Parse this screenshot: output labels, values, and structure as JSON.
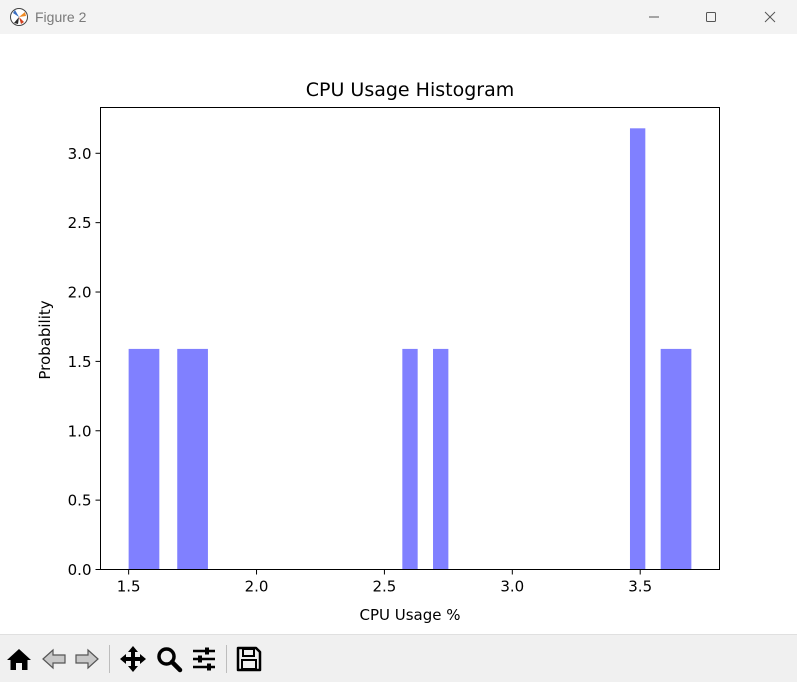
{
  "window": {
    "title": "Figure 2"
  },
  "toolbar": {
    "buttons": [
      "home-icon",
      "back-icon",
      "forward-icon",
      "pan-icon",
      "zoom-icon",
      "configure-icon",
      "save-icon"
    ]
  },
  "colors": {
    "bar": "#8080ff",
    "titlebar": "#f3f3f3",
    "toolbar": "#f0f0f0"
  },
  "chart_data": {
    "type": "bar",
    "title": "CPU Usage Histogram",
    "xlabel": "CPU Usage %",
    "ylabel": "Probability",
    "xlim": [
      1.39,
      3.81
    ],
    "ylim": [
      0,
      3.33
    ],
    "xticks": [
      "1.5",
      "2.0",
      "2.5",
      "3.0",
      "3.5"
    ],
    "xtick_values": [
      1.5,
      2.0,
      2.5,
      3.0,
      3.5
    ],
    "yticks": [
      "0.0",
      "0.5",
      "1.0",
      "1.5",
      "2.0",
      "2.5",
      "3.0"
    ],
    "ytick_values": [
      0.0,
      0.5,
      1.0,
      1.5,
      2.0,
      2.5,
      3.0
    ],
    "bins": [
      {
        "x0": 1.5,
        "x1": 1.62,
        "value": 1.59
      },
      {
        "x0": 1.69,
        "x1": 1.81,
        "value": 1.59
      },
      {
        "x0": 2.57,
        "x1": 2.63,
        "value": 1.59
      },
      {
        "x0": 2.69,
        "x1": 2.75,
        "value": 1.59
      },
      {
        "x0": 3.46,
        "x1": 3.52,
        "value": 3.18
      },
      {
        "x0": 3.58,
        "x1": 3.7,
        "value": 1.59
      }
    ],
    "grid": false,
    "legend": "none"
  }
}
